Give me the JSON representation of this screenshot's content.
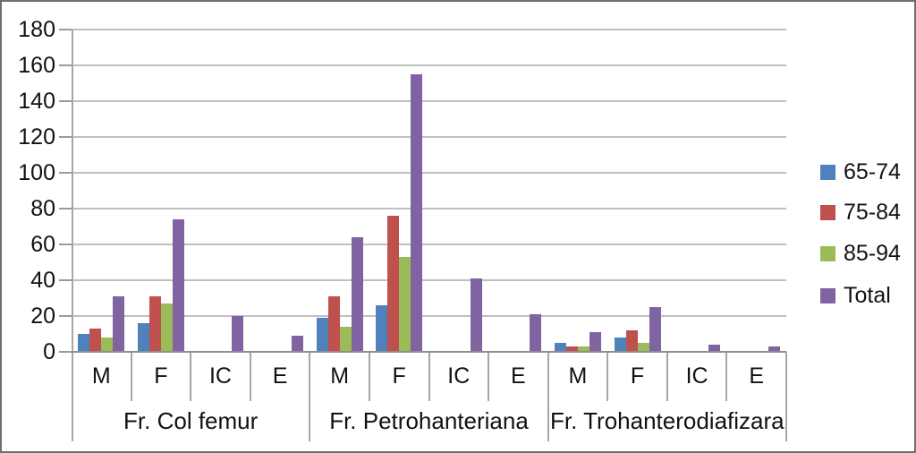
{
  "chart_data": {
    "type": "bar",
    "title": "",
    "xlabel": "",
    "ylabel": "",
    "ylim": [
      0,
      180
    ],
    "ytick_step": 20,
    "ytick_labels": [
      "0",
      "20",
      "40",
      "60",
      "80",
      "100",
      "120",
      "140",
      "160",
      "180"
    ],
    "grid": true,
    "legend_position": "right",
    "groups": [
      "Fr. Col femur",
      "Fr. Petrohanteriana",
      "Fr. Trohanterodiafizara"
    ],
    "subcategories": [
      "M",
      "F",
      "IC",
      "E"
    ],
    "series": [
      {
        "name": "65-74",
        "color": "#4F81BD",
        "values": [
          [
            10,
            16,
            0,
            0
          ],
          [
            19,
            26,
            0,
            0
          ],
          [
            5,
            8,
            0,
            0
          ]
        ]
      },
      {
        "name": "75-84",
        "color": "#C0504D",
        "values": [
          [
            13,
            31,
            0,
            0
          ],
          [
            31,
            76,
            0,
            0
          ],
          [
            3,
            12,
            0,
            0
          ]
        ]
      },
      {
        "name": "85-94",
        "color": "#9BBB59",
        "values": [
          [
            8,
            27,
            0,
            0
          ],
          [
            14,
            53,
            0,
            0
          ],
          [
            3,
            5,
            0,
            0
          ]
        ]
      },
      {
        "name": "Total",
        "color": "#8064A2",
        "values": [
          [
            31,
            74,
            20,
            9
          ],
          [
            64,
            155,
            41,
            21
          ],
          [
            11,
            25,
            4,
            3
          ]
        ]
      }
    ]
  },
  "colors": {
    "gridline": "#bfbfbf",
    "axis": "#a6a6a6",
    "text": "#111111",
    "background": "#ffffff",
    "border": "#6f6f6f"
  }
}
